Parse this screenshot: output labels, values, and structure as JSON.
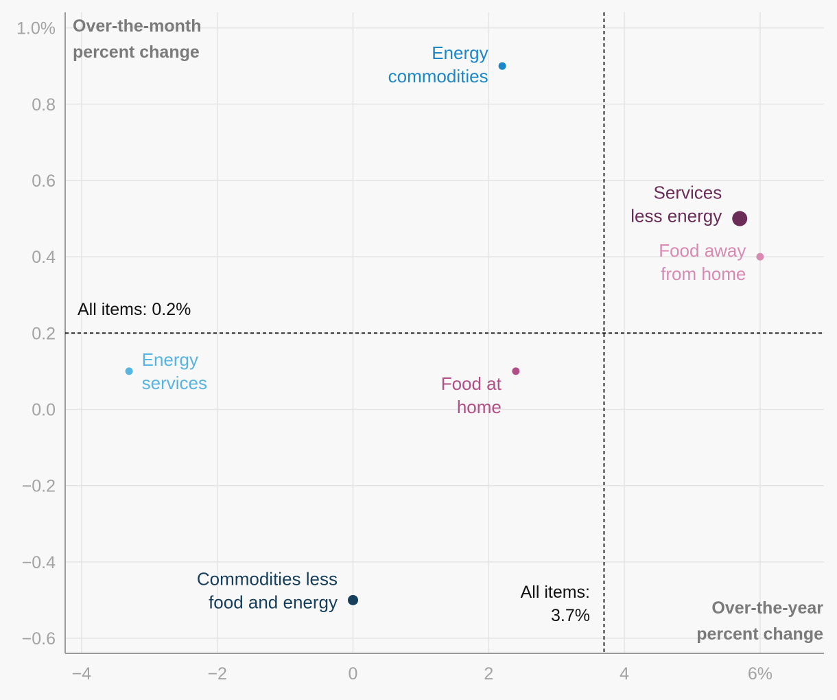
{
  "chart_data": {
    "type": "scatter",
    "title": "",
    "xlabel": [
      "Over-the-year",
      "percent change"
    ],
    "ylabel": [
      "Over-the-month",
      "percent change"
    ],
    "xlim": [
      -4.2,
      6.95
    ],
    "ylim": [
      -0.638,
      1.0
    ],
    "x_ticks": [
      {
        "value": -4,
        "label": "−4"
      },
      {
        "value": -2,
        "label": "−2"
      },
      {
        "value": 0,
        "label": "0"
      },
      {
        "value": 2,
        "label": "2"
      },
      {
        "value": 4,
        "label": "4"
      },
      {
        "value": 6,
        "label": "6%"
      }
    ],
    "y_ticks": [
      {
        "value": 1.0,
        "label": "1.0%"
      },
      {
        "value": 0.8,
        "label": "0.8"
      },
      {
        "value": 0.6,
        "label": "0.6"
      },
      {
        "value": 0.4,
        "label": "0.4"
      },
      {
        "value": 0.2,
        "label": "0.2"
      },
      {
        "value": 0.0,
        "label": "0.0"
      },
      {
        "value": -0.2,
        "label": "−0.2"
      },
      {
        "value": -0.4,
        "label": "−0.4"
      },
      {
        "value": -0.6,
        "label": "−0.6"
      }
    ],
    "grid": true,
    "points": [
      {
        "id": "energy-commodities",
        "label": [
          "Energy",
          "commodities"
        ],
        "x": 2.2,
        "y": 0.9,
        "size": "small",
        "color": "#1b87c9",
        "label_side": "left"
      },
      {
        "id": "services-less-energy",
        "label": [
          "Services",
          "less energy"
        ],
        "x": 5.7,
        "y": 0.5,
        "size": "large",
        "color": "#6b2d57",
        "label_side": "left"
      },
      {
        "id": "food-away-from-home",
        "label": [
          "Food away",
          "from home"
        ],
        "x": 6.0,
        "y": 0.4,
        "size": "small",
        "color": "#d88ab3",
        "label_side": "left"
      },
      {
        "id": "energy-services",
        "label": [
          "Energy",
          "services"
        ],
        "x": -3.3,
        "y": 0.1,
        "size": "small",
        "color": "#58b4e1",
        "label_side": "right"
      },
      {
        "id": "food-at-home",
        "label": [
          "Food at",
          "home"
        ],
        "x": 2.4,
        "y": 0.1,
        "size": "small",
        "color": "#b24f86",
        "label_side": "below-left"
      },
      {
        "id": "commodities-less-food-and-energy",
        "label": [
          "Commodities less",
          "food and energy"
        ],
        "x": 0.0,
        "y": -0.5,
        "size": "medium",
        "color": "#173f5c",
        "label_side": "left"
      }
    ],
    "reference_lines": {
      "horizontal": {
        "value": 0.2,
        "label": "All items: 0.2%"
      },
      "vertical": {
        "value": 3.7,
        "label": [
          "All items:",
          "3.7%"
        ]
      }
    }
  },
  "colors": {
    "background": "#f8f8f8",
    "grid": "#e4e4e4",
    "axis": "#9a9a9a",
    "tick_text": "#a3a3a3",
    "axis_title": "#7a7a7a",
    "reference": "#111111"
  }
}
